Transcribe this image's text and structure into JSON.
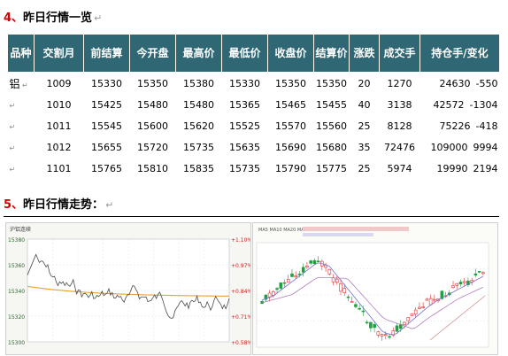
{
  "section4": {
    "number": "4、",
    "title": "昨日行情一览",
    "mark": "↵"
  },
  "table": {
    "headers": [
      "品种",
      "交割月",
      "前结算",
      "今开盘",
      "最高价",
      "最低价",
      "收盘价",
      "结算价",
      "涨跌",
      "成交手",
      "持仓手/变化"
    ],
    "rows": [
      [
        "铝",
        "1009",
        "15330",
        "15350",
        "15380",
        "15330",
        "15350",
        "15350",
        "20",
        "1270",
        "24630",
        "-550"
      ],
      [
        "",
        "1010",
        "15425",
        "15480",
        "15480",
        "15365",
        "15465",
        "15455",
        "40",
        "3138",
        "42572",
        "-1304"
      ],
      [
        "",
        "1011",
        "15545",
        "15600",
        "15620",
        "15525",
        "15570",
        "15560",
        "25",
        "8128",
        "75226",
        "-418"
      ],
      [
        "",
        "1012",
        "15655",
        "15720",
        "15735",
        "15635",
        "15690",
        "15680",
        "35",
        "72476",
        "109000",
        "9994"
      ],
      [
        "",
        "1101",
        "15765",
        "15810",
        "15835",
        "15735",
        "15790",
        "15775",
        "25",
        "5974",
        "19990",
        "2194"
      ]
    ]
  },
  "section5": {
    "number": "5、",
    "title": "昨日行情走势：",
    "mark": "↵"
  },
  "chart_left": {
    "header": "沪铝连续",
    "y_left": [
      "15380",
      "15360",
      "15340",
      "15320",
      "15300"
    ],
    "y_right": [
      "+1.10%",
      "+0.97%",
      "+0.84%",
      "+0.71%",
      "+0.58%"
    ],
    "colors": {
      "price": "#4a4a4a",
      "average": "#e8a030",
      "up": "#d02020",
      "down": "#207020"
    }
  },
  "chart_right": {
    "header": "MA5 MA10 MA20 MA60",
    "colors": {
      "up": "#e23030",
      "down": "#20a040",
      "ma_blue": "#7070d0",
      "ma_purple": "#b080c0",
      "ma_pink": "#d09090"
    }
  }
}
